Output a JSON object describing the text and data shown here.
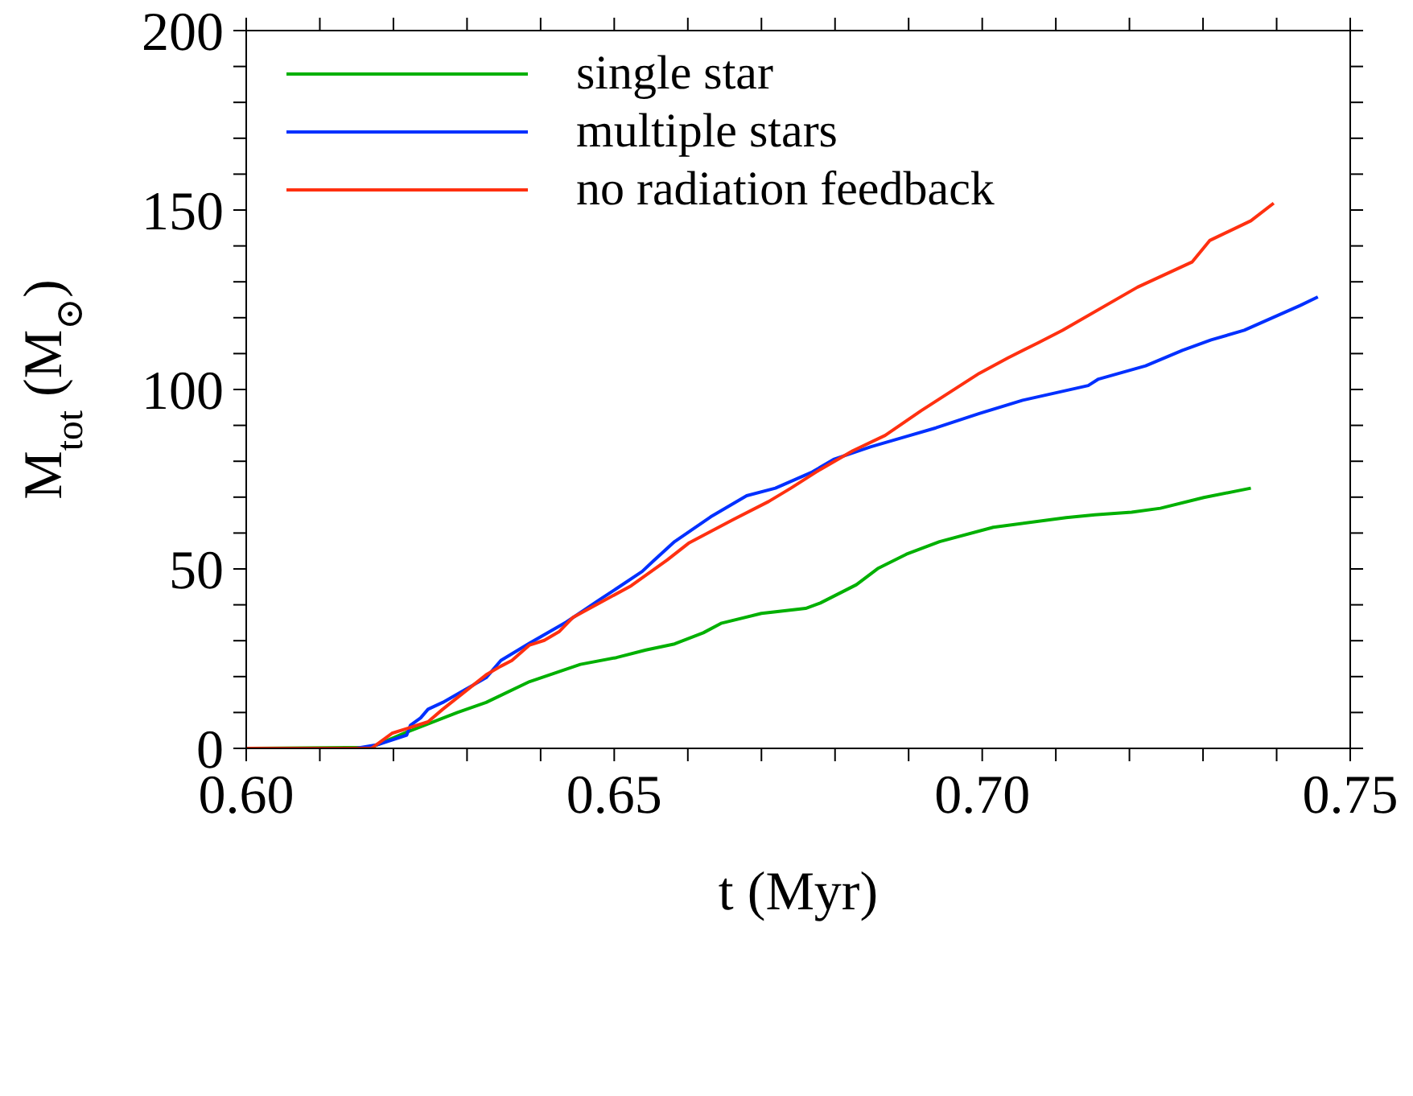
{
  "chart_data": {
    "type": "line",
    "xlabel": "t (Myr)",
    "ylabel": "M$_{tot}$ (M$_{⊙}$)",
    "xlim": [
      0.6,
      0.75
    ],
    "xticks": [
      {
        "value": 0.6,
        "label": "0.60"
      },
      {
        "value": 0.61,
        "label": null
      },
      {
        "value": 0.62,
        "label": null
      },
      {
        "value": 0.63,
        "label": null
      },
      {
        "value": 0.64,
        "label": null
      },
      {
        "value": 0.65,
        "label": "0.65"
      },
      {
        "value": 0.66,
        "label": null
      },
      {
        "value": 0.67,
        "label": null
      },
      {
        "value": 0.68,
        "label": null
      },
      {
        "value": 0.69,
        "label": null
      },
      {
        "value": 0.7,
        "label": "0.70"
      },
      {
        "value": 0.71,
        "label": null
      },
      {
        "value": 0.72,
        "label": null
      },
      {
        "value": 0.73,
        "label": null
      },
      {
        "value": 0.74,
        "label": null
      },
      {
        "value": 0.75,
        "label": "0.75"
      }
    ],
    "ylim": [
      0,
      200
    ],
    "yticks": [
      0,
      {
        "value": 10,
        "label": null
      },
      {
        "value": 20,
        "label": null
      },
      {
        "value": 30,
        "label": null
      },
      {
        "value": 40,
        "label": null
      },
      50,
      {
        "value": 60,
        "label": null
      },
      {
        "value": 70,
        "label": null
      },
      {
        "value": 80,
        "label": null
      },
      {
        "value": 90,
        "label": null
      },
      100,
      {
        "value": 110,
        "label": null
      },
      {
        "value": 120,
        "label": null
      },
      {
        "value": 130,
        "label": null
      },
      {
        "value": 140,
        "label": null
      },
      150,
      {
        "value": 160,
        "label": null
      },
      {
        "value": 170,
        "label": null
      },
      {
        "value": 180,
        "label": null
      },
      {
        "value": 190,
        "label": null
      },
      200
    ],
    "legend": "top left",
    "marker": "none",
    "line_style": "solid",
    "series": [
      {
        "name": "single star",
        "color": "#00b000",
        "x": [
          0.6,
          0.617,
          0.6218,
          0.6287,
          0.6326,
          0.6385,
          0.6454,
          0.6503,
          0.6543,
          0.6582,
          0.6621,
          0.6646,
          0.67,
          0.676,
          0.678,
          0.6829,
          0.6858,
          0.6897,
          0.6942,
          0.7015,
          0.7114,
          0.7153,
          0.7203,
          0.7242,
          0.7301,
          0.7365
        ],
        "values": [
          0,
          0.3,
          4.5,
          10,
          12.8,
          18.6,
          23.4,
          25.3,
          27.4,
          29.1,
          32.2,
          34.9,
          37.6,
          39,
          40.5,
          45.6,
          50.1,
          54.1,
          57.6,
          61.6,
          64.3,
          65.1,
          65.8,
          66.9,
          69.9,
          72.5
        ]
      },
      {
        "name": "multiple stars",
        "color": "#0030ff",
        "x": [
          0.6,
          0.6149,
          0.6178,
          0.6218,
          0.6223,
          0.6237,
          0.6247,
          0.6267,
          0.6297,
          0.6326,
          0.6346,
          0.6385,
          0.6435,
          0.6479,
          0.6503,
          0.6538,
          0.6553,
          0.6582,
          0.6631,
          0.668,
          0.6719,
          0.6769,
          0.6798,
          0.6848,
          0.6897,
          0.6937,
          0.6996,
          0.7055,
          0.7144,
          0.7158,
          0.7222,
          0.7272,
          0.7311,
          0.7356,
          0.7432,
          0.7456
        ],
        "values": [
          0,
          0,
          1,
          3.7,
          6.4,
          8.5,
          10.9,
          12.8,
          16.3,
          19.7,
          24.5,
          29.3,
          35.2,
          41.3,
          44.5,
          49.3,
          52.2,
          57.6,
          64.5,
          70.4,
          72.5,
          77,
          80.5,
          84,
          86.9,
          89.3,
          93.3,
          97,
          101.1,
          102.9,
          106.6,
          110.9,
          113.8,
          116.5,
          123.4,
          125.8
        ]
      },
      {
        "name": "no radiation feedback",
        "color": "#ff3010",
        "x": [
          0.6,
          0.617,
          0.6198,
          0.6247,
          0.6267,
          0.6326,
          0.6346,
          0.6361,
          0.6385,
          0.6405,
          0.6425,
          0.6444,
          0.6523,
          0.6572,
          0.6602,
          0.6661,
          0.671,
          0.674,
          0.6779,
          0.6824,
          0.6868,
          0.6917,
          0.6996,
          0.7035,
          0.7076,
          0.7109,
          0.7211,
          0.7285,
          0.7309,
          0.7365,
          0.7396
        ],
        "values": [
          0,
          0,
          4.2,
          7.4,
          10.9,
          20.5,
          22.9,
          24.5,
          28.8,
          30.1,
          32.5,
          36.5,
          45.3,
          52.5,
          57.3,
          63.7,
          68.8,
          72.5,
          77.6,
          82.9,
          87.2,
          94.1,
          104.5,
          108.8,
          113,
          116.5,
          128.5,
          135.5,
          141.5,
          147,
          151.9
        ]
      }
    ]
  }
}
